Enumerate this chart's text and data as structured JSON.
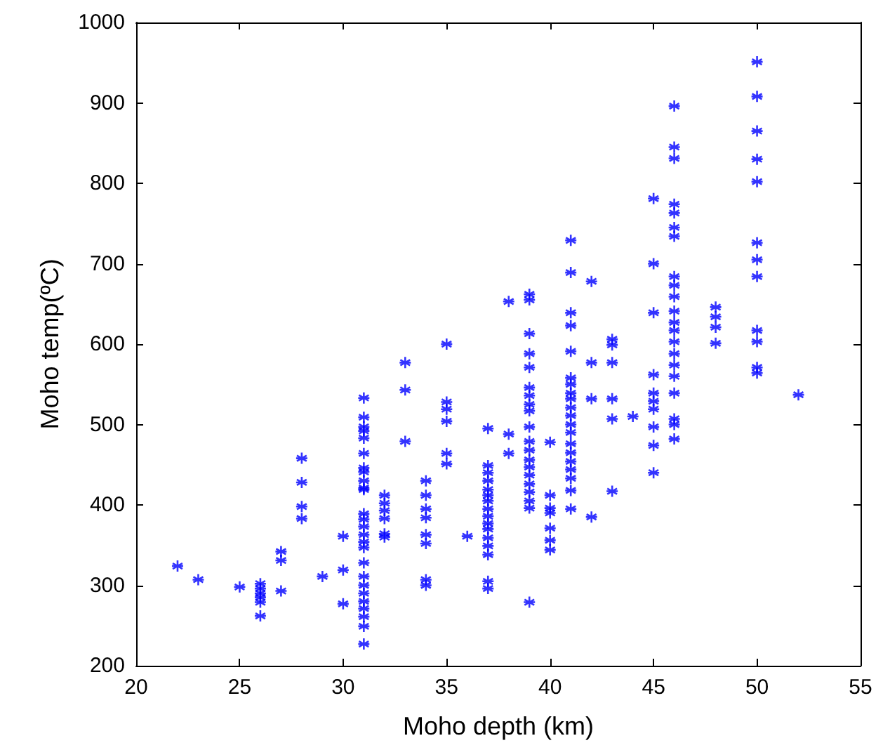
{
  "chart_data": {
    "type": "scatter",
    "xlabel": "Moho depth (km)",
    "ylabel": "Moho temp(ºC)",
    "xlim": [
      20,
      55
    ],
    "xticks": [
      20,
      25,
      30,
      35,
      40,
      45,
      50,
      55
    ],
    "ylim": [
      200,
      1000
    ],
    "yticks": [
      200,
      300,
      400,
      500,
      600,
      700,
      800,
      900,
      1000
    ],
    "grid": false,
    "marker": "cross",
    "series": [
      {
        "color": "#0000ff",
        "x": [
          22,
          23,
          25,
          26,
          26,
          26,
          26,
          26,
          26,
          27,
          27,
          27,
          28,
          28,
          28,
          28,
          29,
          30,
          30,
          30,
          31,
          31,
          31,
          31,
          31,
          31,
          31,
          31,
          31,
          31,
          31,
          31,
          31,
          31,
          31,
          31,
          31,
          31,
          31,
          31,
          31,
          31,
          31,
          31,
          31,
          31,
          32,
          32,
          32,
          32,
          32,
          32,
          33,
          33,
          33,
          34,
          34,
          34,
          34,
          34,
          34,
          34,
          34,
          35,
          35,
          35,
          35,
          35,
          35,
          36,
          37,
          37,
          37,
          37,
          37,
          37,
          37,
          37,
          37,
          37,
          37,
          37,
          37,
          37,
          37,
          37,
          38,
          38,
          38,
          39,
          39,
          39,
          39,
          39,
          39,
          39,
          39,
          39,
          39,
          39,
          39,
          39,
          39,
          39,
          39,
          39,
          39,
          39,
          39,
          40,
          40,
          40,
          40,
          40,
          40,
          40,
          41,
          41,
          41,
          41,
          41,
          41,
          41,
          41,
          41,
          41,
          41,
          41,
          41,
          41,
          41,
          41,
          41,
          41,
          41,
          41,
          42,
          42,
          42,
          42,
          43,
          43,
          43,
          43,
          43,
          43,
          44,
          45,
          45,
          45,
          45,
          45,
          45,
          45,
          45,
          45,
          45,
          46,
          46,
          46,
          46,
          46,
          46,
          46,
          46,
          46,
          46,
          46,
          46,
          46,
          46,
          46,
          46,
          46,
          46,
          46,
          46,
          46,
          48,
          48,
          48,
          48,
          50,
          50,
          50,
          50,
          50,
          50,
          50,
          50,
          50,
          50,
          50,
          50,
          52
        ],
        "values": [
          324,
          307,
          298,
          302,
          296,
          290,
          285,
          279,
          262,
          342,
          331,
          293,
          458,
          428,
          398,
          383,
          311,
          361,
          319,
          277,
          533,
          509,
          497,
          492,
          483,
          464,
          446,
          441,
          430,
          421,
          419,
          389,
          382,
          373,
          363,
          354,
          347,
          328,
          311,
          300,
          290,
          280,
          271,
          261,
          249,
          227,
          412,
          402,
          393,
          383,
          364,
          360,
          577,
          543,
          479,
          430,
          412,
          395,
          384,
          363,
          352,
          307,
          300,
          600,
          528,
          519,
          504,
          464,
          451,
          361,
          495,
          449,
          440,
          430,
          419,
          412,
          405,
          395,
          386,
          377,
          370,
          359,
          349,
          338,
          305,
          296,
          653,
          488,
          464,
          662,
          655,
          613,
          588,
          571,
          546,
          536,
          525,
          517,
          497,
          479,
          468,
          456,
          447,
          437,
          426,
          416,
          405,
          396,
          279,
          478,
          412,
          396,
          390,
          371,
          356,
          344,
          729,
          689,
          639,
          623,
          591,
          558,
          550,
          539,
          532,
          521,
          511,
          500,
          490,
          476,
          465,
          454,
          444,
          433,
          418,
          395,
          678,
          577,
          532,
          385,
          606,
          599,
          577,
          532,
          507,
          417,
          510,
          781,
          700,
          639,
          562,
          539,
          529,
          519,
          497,
          474,
          440,
          896,
          845,
          831,
          774,
          763,
          745,
          734,
          684,
          673,
          659,
          641,
          627,
          617,
          603,
          588,
          574,
          560,
          539,
          507,
          500,
          482,
          646,
          634,
          621,
          601,
          951,
          908,
          865,
          830,
          802,
          726,
          705,
          684,
          617,
          603,
          571,
          564,
          537
        ]
      }
    ]
  }
}
